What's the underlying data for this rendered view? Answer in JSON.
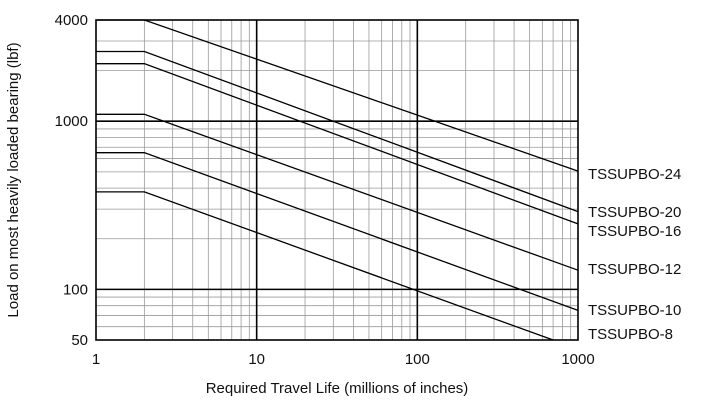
{
  "chart_data": {
    "type": "line",
    "title": "",
    "xlabel": "Required Travel Life (millions of inches)",
    "ylabel": "Load on most heavily loaded bearing (lbf)",
    "x_scale": "log",
    "y_scale": "log",
    "xlim": [
      1,
      1000
    ],
    "ylim": [
      50,
      4000
    ],
    "x_ticks": [
      1,
      10,
      100,
      1000
    ],
    "x_tick_labels": [
      "1",
      "10",
      "100",
      "1000"
    ],
    "y_ticks": [
      50,
      100,
      1000,
      4000
    ],
    "y_tick_labels": [
      "50",
      "100",
      "1000",
      "4000"
    ],
    "grid": true,
    "legend": "labels at right end of each line",
    "line_color": "#000000",
    "series": [
      {
        "name": "TSSUPBO-24",
        "x": [
          1,
          2,
          1000
        ],
        "y": [
          4000,
          4000,
          505
        ]
      },
      {
        "name": "TSSUPBO-20",
        "x": [
          1,
          2,
          1000
        ],
        "y": [
          2600,
          2600,
          290
        ]
      },
      {
        "name": "TSSUPBO-16",
        "x": [
          1,
          2,
          1000
        ],
        "y": [
          2200,
          2200,
          245
        ]
      },
      {
        "name": "TSSUPBO-12",
        "x": [
          1,
          2,
          1000
        ],
        "y": [
          1100,
          1100,
          130
        ]
      },
      {
        "name": "TSSUPBO-10",
        "x": [
          1,
          2,
          1000
        ],
        "y": [
          650,
          650,
          75
        ]
      },
      {
        "name": "TSSUPBO-8",
        "x": [
          1,
          2,
          700
        ],
        "y": [
          380,
          380,
          50
        ]
      }
    ]
  }
}
